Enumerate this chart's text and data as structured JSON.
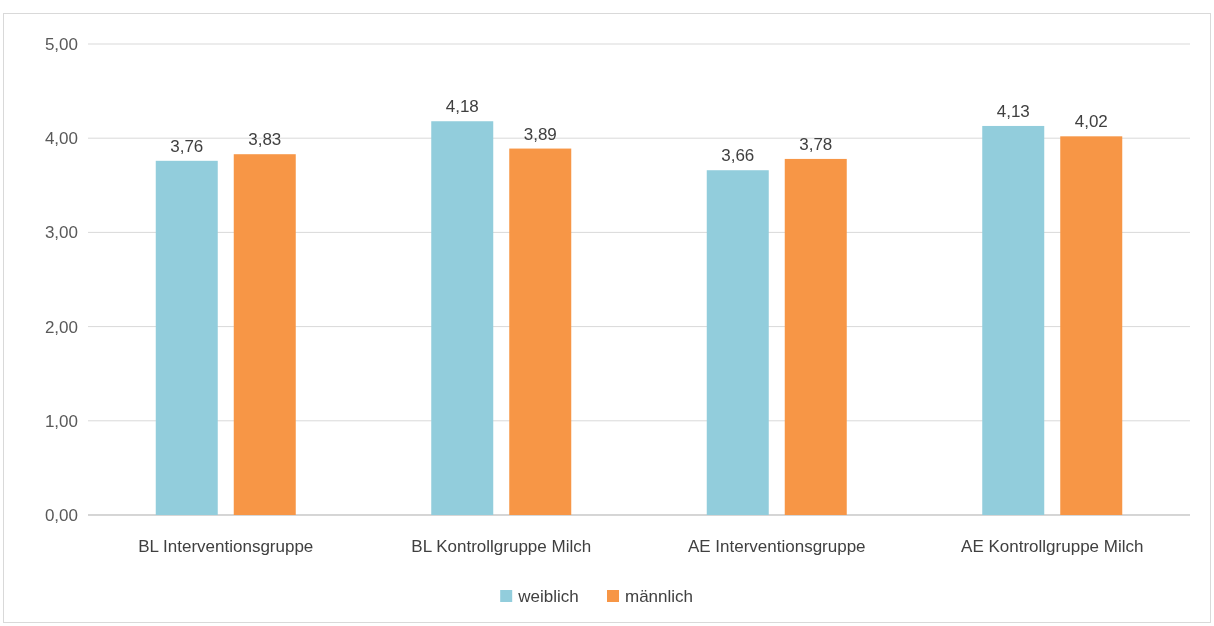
{
  "chart_data": {
    "type": "bar",
    "categories": [
      "BL Interventionsgruppe",
      "BL Kontrollgruppe Milch",
      "AE Interventionsgruppe",
      "AE Kontrollgruppe Milch"
    ],
    "series": [
      {
        "name": "weiblich",
        "color": "#92cddc",
        "values": [
          3.76,
          4.18,
          3.66,
          4.13
        ],
        "value_labels": [
          "3,76",
          "4,18",
          "3,66",
          "4,13"
        ]
      },
      {
        "name": "männlich",
        "color": "#f79646",
        "values": [
          3.83,
          3.89,
          3.78,
          4.02
        ],
        "value_labels": [
          "3,83",
          "3,89",
          "3,78",
          "4,02"
        ]
      }
    ],
    "ylim": [
      0,
      5
    ],
    "yticks": [
      {
        "value": 0,
        "label": "0,00"
      },
      {
        "value": 1,
        "label": "1,00"
      },
      {
        "value": 2,
        "label": "2,00"
      },
      {
        "value": 3,
        "label": "3,00"
      },
      {
        "value": 4,
        "label": "4,00"
      },
      {
        "value": 5,
        "label": "5,00"
      }
    ],
    "grid": "y",
    "legend": "bottom"
  }
}
